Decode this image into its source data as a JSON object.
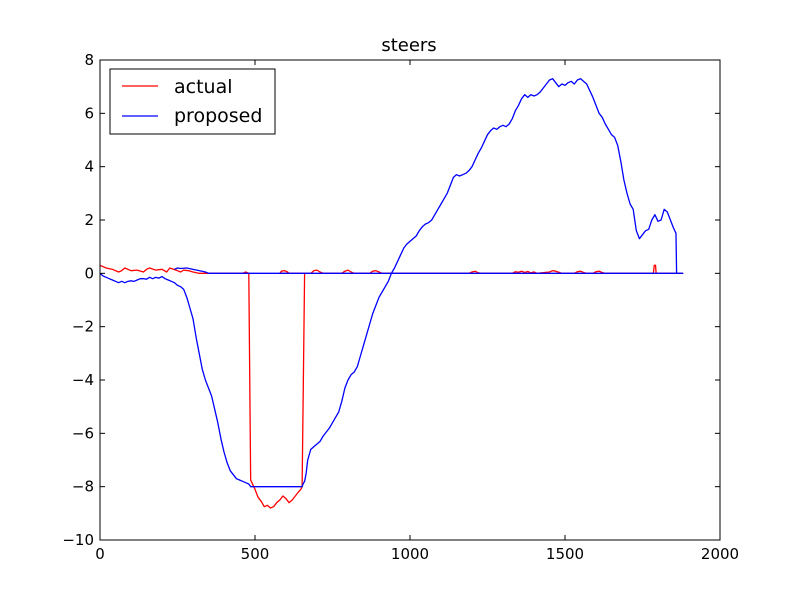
{
  "chart_data": {
    "type": "line",
    "title": "steers",
    "xlabel": "",
    "ylabel": "",
    "xlim": [
      0,
      2000
    ],
    "ylim": [
      -10,
      8
    ],
    "xticks": [
      0,
      500,
      1000,
      1500,
      2000
    ],
    "yticks": [
      -10,
      -8,
      -6,
      -4,
      -2,
      0,
      2,
      4,
      6,
      8
    ],
    "grid": false,
    "legend_position": "top-left",
    "series": [
      {
        "name": "actual",
        "color": "#ff0000",
        "points": [
          [
            0,
            0.3
          ],
          [
            10,
            0.25
          ],
          [
            20,
            0.2
          ],
          [
            40,
            0.15
          ],
          [
            60,
            0.05
          ],
          [
            70,
            0.1
          ],
          [
            80,
            0.2
          ],
          [
            90,
            0.15
          ],
          [
            100,
            0.1
          ],
          [
            120,
            0.12
          ],
          [
            140,
            0.05
          ],
          [
            150,
            0.15
          ],
          [
            160,
            0.2
          ],
          [
            180,
            0.12
          ],
          [
            200,
            0.15
          ],
          [
            215,
            0.05
          ],
          [
            225,
            0.2
          ],
          [
            250,
            0.1
          ],
          [
            260,
            0.05
          ],
          [
            270,
            0.12
          ],
          [
            285,
            0.1
          ],
          [
            300,
            0.05
          ],
          [
            320,
            0.0
          ],
          [
            330,
            0.0
          ],
          [
            420,
            0.0
          ],
          [
            460,
            0.0
          ],
          [
            470,
            0.05
          ],
          [
            480,
            0.0
          ],
          [
            486,
            -7.75
          ],
          [
            490,
            -7.85
          ],
          [
            500,
            -8.1
          ],
          [
            510,
            -8.4
          ],
          [
            520,
            -8.55
          ],
          [
            530,
            -8.75
          ],
          [
            540,
            -8.7
          ],
          [
            550,
            -8.8
          ],
          [
            560,
            -8.75
          ],
          [
            570,
            -8.6
          ],
          [
            580,
            -8.5
          ],
          [
            590,
            -8.35
          ],
          [
            600,
            -8.45
          ],
          [
            610,
            -8.6
          ],
          [
            620,
            -8.5
          ],
          [
            630,
            -8.35
          ],
          [
            640,
            -8.2
          ],
          [
            648,
            -8.1
          ],
          [
            652,
            -8.0
          ],
          [
            660,
            0.0
          ],
          [
            580,
            0.0
          ],
          [
            585,
            0.08
          ],
          [
            595,
            0.1
          ],
          [
            605,
            0.05
          ],
          [
            610,
            0.0
          ],
          [
            680,
            0.0
          ],
          [
            690,
            0.1
          ],
          [
            700,
            0.12
          ],
          [
            710,
            0.05
          ],
          [
            720,
            0.0
          ],
          [
            780,
            0.0
          ],
          [
            790,
            0.08
          ],
          [
            800,
            0.12
          ],
          [
            810,
            0.05
          ],
          [
            820,
            0.0
          ],
          [
            870,
            0.0
          ],
          [
            880,
            0.08
          ],
          [
            890,
            0.1
          ],
          [
            900,
            0.05
          ],
          [
            910,
            0.0
          ],
          [
            1190,
            0.0
          ],
          [
            1200,
            0.05
          ],
          [
            1210,
            0.08
          ],
          [
            1220,
            0.02
          ],
          [
            1230,
            0.0
          ],
          [
            1330,
            0.0
          ],
          [
            1340,
            0.06
          ],
          [
            1350,
            0.04
          ],
          [
            1360,
            0.08
          ],
          [
            1370,
            0.03
          ],
          [
            1380,
            0.07
          ],
          [
            1390,
            0.02
          ],
          [
            1400,
            0.05
          ],
          [
            1410,
            0.0
          ],
          [
            1450,
            0.05
          ],
          [
            1460,
            0.1
          ],
          [
            1470,
            0.08
          ],
          [
            1480,
            0.04
          ],
          [
            1490,
            0.0
          ],
          [
            1530,
            0.0
          ],
          [
            1540,
            0.06
          ],
          [
            1550,
            0.08
          ],
          [
            1560,
            0.03
          ],
          [
            1570,
            0.0
          ],
          [
            1590,
            0.0
          ],
          [
            1600,
            0.06
          ],
          [
            1610,
            0.08
          ],
          [
            1620,
            0.03
          ],
          [
            1630,
            0.0
          ],
          [
            1785,
            0.0
          ],
          [
            1788,
            0.3
          ],
          [
            1792,
            0.3
          ],
          [
            1794,
            0.0
          ],
          [
            1880,
            0.0
          ]
        ]
      },
      {
        "name": "proposed",
        "color": "#0000ff",
        "points": [
          [
            0,
            0.0
          ],
          [
            10,
            -0.1
          ],
          [
            20,
            -0.15
          ],
          [
            30,
            -0.2
          ],
          [
            40,
            -0.25
          ],
          [
            50,
            -0.3
          ],
          [
            60,
            -0.35
          ],
          [
            70,
            -0.3
          ],
          [
            80,
            -0.35
          ],
          [
            90,
            -0.3
          ],
          [
            100,
            -0.28
          ],
          [
            110,
            -0.3
          ],
          [
            120,
            -0.25
          ],
          [
            130,
            -0.2
          ],
          [
            140,
            -0.2
          ],
          [
            150,
            -0.22
          ],
          [
            160,
            -0.15
          ],
          [
            170,
            -0.2
          ],
          [
            180,
            -0.15
          ],
          [
            190,
            -0.18
          ],
          [
            200,
            -0.12
          ],
          [
            210,
            -0.2
          ],
          [
            220,
            -0.25
          ],
          [
            230,
            -0.3
          ],
          [
            240,
            -0.35
          ],
          [
            250,
            -0.45
          ],
          [
            260,
            -0.5
          ],
          [
            270,
            -0.6
          ],
          [
            280,
            -0.9
          ],
          [
            290,
            -1.3
          ],
          [
            300,
            -1.7
          ],
          [
            310,
            -2.4
          ],
          [
            320,
            -3.0
          ],
          [
            330,
            -3.6
          ],
          [
            340,
            -4.0
          ],
          [
            350,
            -4.3
          ],
          [
            360,
            -4.6
          ],
          [
            370,
            -5.1
          ],
          [
            380,
            -5.6
          ],
          [
            390,
            -6.2
          ],
          [
            400,
            -6.7
          ],
          [
            410,
            -7.1
          ],
          [
            420,
            -7.4
          ],
          [
            430,
            -7.55
          ],
          [
            440,
            -7.7
          ],
          [
            450,
            -7.75
          ],
          [
            460,
            -7.8
          ],
          [
            470,
            -7.85
          ],
          [
            480,
            -7.9
          ],
          [
            486,
            -8.0
          ],
          [
            652,
            -8.0
          ],
          [
            655,
            -7.9
          ],
          [
            660,
            -7.8
          ],
          [
            665,
            -7.5
          ],
          [
            670,
            -7.0
          ],
          [
            680,
            -6.6
          ],
          [
            690,
            -6.5
          ],
          [
            700,
            -6.4
          ],
          [
            710,
            -6.3
          ],
          [
            720,
            -6.1
          ],
          [
            730,
            -5.95
          ],
          [
            740,
            -5.8
          ],
          [
            750,
            -5.6
          ],
          [
            760,
            -5.4
          ],
          [
            770,
            -5.2
          ],
          [
            780,
            -4.8
          ],
          [
            790,
            -4.3
          ],
          [
            800,
            -4.0
          ],
          [
            810,
            -3.8
          ],
          [
            820,
            -3.7
          ],
          [
            830,
            -3.5
          ],
          [
            840,
            -3.1
          ],
          [
            850,
            -2.7
          ],
          [
            860,
            -2.3
          ],
          [
            870,
            -1.9
          ],
          [
            880,
            -1.5
          ],
          [
            890,
            -1.2
          ],
          [
            900,
            -0.9
          ],
          [
            910,
            -0.7
          ],
          [
            920,
            -0.5
          ],
          [
            930,
            -0.3
          ],
          [
            940,
            0.0
          ],
          [
            950,
            0.2
          ],
          [
            960,
            0.45
          ],
          [
            970,
            0.7
          ],
          [
            980,
            0.95
          ],
          [
            990,
            1.1
          ],
          [
            1000,
            1.2
          ],
          [
            1010,
            1.3
          ],
          [
            1020,
            1.4
          ],
          [
            1030,
            1.6
          ],
          [
            1040,
            1.75
          ],
          [
            1050,
            1.85
          ],
          [
            1060,
            1.9
          ],
          [
            1070,
            2.0
          ],
          [
            1080,
            2.2
          ],
          [
            1090,
            2.4
          ],
          [
            1100,
            2.6
          ],
          [
            1110,
            2.8
          ],
          [
            1120,
            3.0
          ],
          [
            1130,
            3.3
          ],
          [
            1140,
            3.6
          ],
          [
            1150,
            3.7
          ],
          [
            1160,
            3.65
          ],
          [
            1170,
            3.7
          ],
          [
            1180,
            3.75
          ],
          [
            1190,
            3.85
          ],
          [
            1200,
            4.0
          ],
          [
            1210,
            4.25
          ],
          [
            1220,
            4.5
          ],
          [
            1230,
            4.7
          ],
          [
            1240,
            4.95
          ],
          [
            1250,
            5.2
          ],
          [
            1260,
            5.35
          ],
          [
            1270,
            5.45
          ],
          [
            1280,
            5.4
          ],
          [
            1290,
            5.5
          ],
          [
            1300,
            5.55
          ],
          [
            1310,
            5.5
          ],
          [
            1320,
            5.6
          ],
          [
            1330,
            5.8
          ],
          [
            1340,
            6.1
          ],
          [
            1350,
            6.3
          ],
          [
            1360,
            6.55
          ],
          [
            1370,
            6.7
          ],
          [
            1380,
            6.6
          ],
          [
            1390,
            6.7
          ],
          [
            1400,
            6.65
          ],
          [
            1410,
            6.7
          ],
          [
            1420,
            6.8
          ],
          [
            1430,
            6.95
          ],
          [
            1440,
            7.1
          ],
          [
            1450,
            7.25
          ],
          [
            1460,
            7.3
          ],
          [
            1470,
            7.15
          ],
          [
            1480,
            7.0
          ],
          [
            1490,
            7.1
          ],
          [
            1500,
            7.05
          ],
          [
            1510,
            7.15
          ],
          [
            1520,
            7.2
          ],
          [
            1530,
            7.1
          ],
          [
            1540,
            7.25
          ],
          [
            1550,
            7.3
          ],
          [
            1560,
            7.2
          ],
          [
            1570,
            7.1
          ],
          [
            1580,
            6.85
          ],
          [
            1590,
            6.6
          ],
          [
            1600,
            6.3
          ],
          [
            1610,
            6.0
          ],
          [
            1620,
            5.85
          ],
          [
            1630,
            5.6
          ],
          [
            1640,
            5.4
          ],
          [
            1650,
            5.2
          ],
          [
            1660,
            5.1
          ],
          [
            1670,
            4.8
          ],
          [
            1680,
            4.2
          ],
          [
            1690,
            3.5
          ],
          [
            1700,
            3.0
          ],
          [
            1710,
            2.6
          ],
          [
            1720,
            2.4
          ],
          [
            1725,
            2.0
          ],
          [
            1730,
            1.6
          ],
          [
            1740,
            1.3
          ],
          [
            1750,
            1.45
          ],
          [
            1760,
            1.6
          ],
          [
            1770,
            1.65
          ],
          [
            1780,
            2.0
          ],
          [
            1790,
            2.2
          ],
          [
            1800,
            1.95
          ],
          [
            1810,
            2.0
          ],
          [
            1820,
            2.4
          ],
          [
            1830,
            2.3
          ],
          [
            1840,
            2.0
          ],
          [
            1850,
            1.7
          ],
          [
            1858,
            1.5
          ],
          [
            1860,
            0.0
          ],
          [
            1880,
            0.0
          ],
          [
            350,
            0.0
          ],
          [
            340,
            0.05
          ],
          [
            320,
            0.1
          ],
          [
            300,
            0.15
          ],
          [
            280,
            0.2
          ],
          [
            260,
            0.18
          ],
          [
            250,
            0.2
          ],
          [
            240,
            0.15
          ]
        ]
      }
    ]
  }
}
